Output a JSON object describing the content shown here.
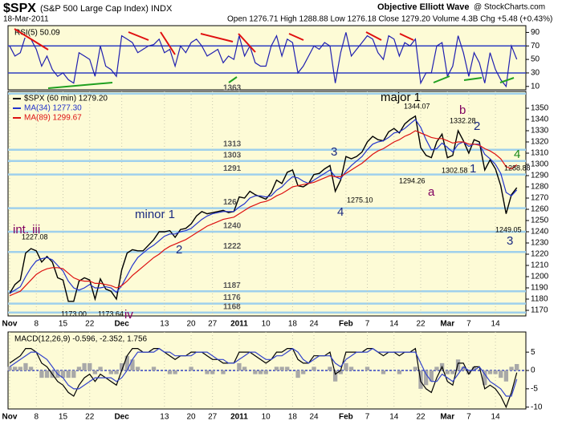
{
  "header": {
    "symbol": "$SPX",
    "name": "(S&P 500 Large Cap Index) INDX",
    "source": "Objective Elliott Wave",
    "site": "@ StockCharts.com",
    "date": "18-Mar-2011",
    "quote": "Open 1276.71 High 1288.88 Low 1276.18 Close 1279.20 Volume 4.3B Chg +5.48 (+0.43%)"
  },
  "chart_data": [
    {
      "type": "line",
      "title": "RSI(5) 50.09",
      "series": [
        {
          "color": "#2020b0",
          "values": [
            70,
            55,
            60,
            85,
            80,
            65,
            40,
            55,
            35,
            25,
            30,
            20,
            15,
            60,
            55,
            50,
            25,
            70,
            40,
            35,
            25,
            85,
            80,
            75,
            60,
            65,
            70,
            72,
            80,
            60,
            65,
            40,
            70,
            60,
            75,
            80,
            70,
            55,
            60,
            65,
            45,
            55,
            50,
            85,
            55,
            70,
            45,
            40,
            40,
            70,
            85,
            55,
            80,
            75,
            30,
            40,
            55,
            70,
            65,
            75,
            70,
            15,
            60,
            90,
            55,
            65,
            75,
            85,
            80,
            60,
            50,
            85,
            80,
            55,
            75,
            70,
            80,
            15,
            30,
            30,
            70,
            75,
            25,
            40,
            85,
            60,
            25,
            60,
            45,
            15,
            60,
            35,
            20,
            10,
            70,
            50.09
          ]
        }
      ],
      "ylim": [
        5,
        100
      ],
      "yticks": [
        10,
        30,
        50,
        70,
        90
      ],
      "ref_lines": [
        30,
        70
      ]
    },
    {
      "type": "line",
      "categories": [
        "Nov",
        null,
        null,
        null,
        null,
        "8",
        null,
        null,
        null,
        null,
        "15",
        null,
        null,
        null,
        null,
        "22",
        null,
        null,
        null,
        null,
        null,
        "Dec",
        null,
        null,
        null,
        null,
        null,
        null,
        null,
        "13",
        null,
        null,
        null,
        null,
        "20",
        null,
        null,
        null,
        "27",
        null,
        null,
        null,
        null,
        "2011",
        null,
        null,
        null,
        null,
        "10",
        null,
        null,
        null,
        null,
        "18",
        null,
        null,
        null,
        "24",
        null,
        null,
        null,
        null,
        null,
        "Feb",
        null,
        null,
        null,
        "7",
        null,
        null,
        null,
        null,
        "14",
        null,
        null,
        null,
        null,
        "22",
        null,
        null,
        null,
        null,
        "Mar",
        null,
        null,
        null,
        "7",
        null,
        null,
        null,
        null,
        "14",
        null,
        null,
        null,
        null
      ],
      "series": [
        {
          "name": "$SPX (60 min) 1279.20",
          "color": "#000000",
          "values": [
            1185,
            1193,
            1197,
            1221,
            1225,
            1223,
            1213,
            1218,
            1213,
            1199,
            1197,
            1178,
            1178,
            1196,
            1199,
            1197,
            1180,
            1198,
            1189,
            1187,
            1180,
            1206,
            1221,
            1224,
            1223,
            1223,
            1228,
            1233,
            1240,
            1240,
            1241,
            1235,
            1242,
            1243,
            1247,
            1254,
            1258,
            1256,
            1257,
            1258,
            1259,
            1257,
            1258,
            1271,
            1270,
            1276,
            1273,
            1271,
            1269,
            1275,
            1286,
            1283,
            1293,
            1295,
            1281,
            1280,
            1283,
            1291,
            1292,
            1296,
            1299,
            1276,
            1286,
            1307,
            1305,
            1307,
            1311,
            1320,
            1325,
            1322,
            1321,
            1329,
            1332,
            1328,
            1336,
            1340,
            1343,
            1315,
            1308,
            1306,
            1320,
            1327,
            1306,
            1308,
            1330,
            1321,
            1310,
            1322,
            1320,
            1295,
            1304,
            1296,
            1281,
            1256,
            1273,
            1279.2
          ]
        },
        {
          "name": "MA(34) 1277.30",
          "color": "#2233cc",
          "values": [
            1185,
            1188,
            1191,
            1200,
            1208,
            1214,
            1216,
            1217,
            1215,
            1210,
            1205,
            1196,
            1190,
            1188,
            1190,
            1193,
            1190,
            1190,
            1191,
            1190,
            1186,
            1192,
            1201,
            1210,
            1217,
            1221,
            1225,
            1228,
            1232,
            1236,
            1238,
            1238,
            1240,
            1241,
            1243,
            1247,
            1251,
            1254,
            1256,
            1257,
            1258,
            1258,
            1258,
            1262,
            1265,
            1270,
            1272,
            1272,
            1271,
            1272,
            1277,
            1280,
            1285,
            1289,
            1288,
            1285,
            1283,
            1286,
            1289,
            1292,
            1295,
            1289,
            1287,
            1294,
            1299,
            1303,
            1307,
            1313,
            1318,
            1320,
            1321,
            1324,
            1328,
            1329,
            1332,
            1336,
            1340,
            1333,
            1322,
            1313,
            1314,
            1319,
            1315,
            1311,
            1318,
            1320,
            1316,
            1318,
            1318,
            1309,
            1305,
            1300,
            1292,
            1275,
            1272,
            1277.3
          ]
        },
        {
          "name": "MA(89) 1299.67",
          "color": "#dd1111",
          "values": [
            1183,
            1185,
            1187,
            1192,
            1197,
            1202,
            1205,
            1207,
            1208,
            1208,
            1207,
            1203,
            1199,
            1197,
            1196,
            1196,
            1194,
            1194,
            1193,
            1192,
            1190,
            1192,
            1196,
            1201,
            1205,
            1209,
            1213,
            1217,
            1220,
            1224,
            1227,
            1229,
            1231,
            1233,
            1236,
            1239,
            1242,
            1245,
            1247,
            1249,
            1251,
            1252,
            1253,
            1256,
            1259,
            1262,
            1264,
            1266,
            1267,
            1269,
            1272,
            1274,
            1277,
            1280,
            1281,
            1282,
            1283,
            1284,
            1286,
            1288,
            1290,
            1289,
            1289,
            1292,
            1295,
            1298,
            1301,
            1305,
            1309,
            1312,
            1314,
            1317,
            1320,
            1322,
            1325,
            1327,
            1330,
            1328,
            1326,
            1324,
            1323,
            1323,
            1321,
            1319,
            1320,
            1320,
            1318,
            1318,
            1317,
            1314,
            1312,
            1309,
            1305,
            1298,
            1296,
            1299.67
          ]
        }
      ],
      "ylim": [
        1165,
        1365
      ],
      "yticks": [
        1170,
        1180,
        1190,
        1200,
        1210,
        1220,
        1230,
        1240,
        1250,
        1260,
        1270,
        1280,
        1290,
        1300,
        1310,
        1320,
        1330,
        1340,
        1350
      ],
      "levels": [
        1363,
        1313,
        1303,
        1291,
        {
          "value": 1261,
          "label": "126"
        },
        1240,
        1222,
        1187,
        1176,
        1168
      ],
      "annotations": [
        {
          "text": "major 1",
          "color": "#000000"
        },
        {
          "text": "1344.07",
          "color": "#000000"
        },
        {
          "text": "b",
          "color": "#800060"
        },
        {
          "text": "1332.28",
          "color": "#000000"
        },
        {
          "text": "2",
          "color": "#1a2a80"
        },
        {
          "text": "3",
          "color": "#1a2a80"
        },
        {
          "text": "1",
          "color": "#1a2a80"
        },
        {
          "text": "1302.58",
          "color": "#000000"
        },
        {
          "text": "1294.26",
          "color": "#000000"
        },
        {
          "text": "a",
          "color": "#800060"
        },
        {
          "text": "4",
          "color": "#1a8a1a"
        },
        {
          "text": "1288.88",
          "color": "#000000"
        },
        {
          "text": "1275.10",
          "color": "#000000"
        },
        {
          "text": "4",
          "color": "#1a2a80"
        },
        {
          "text": "minor 1",
          "color": "#1a2a80"
        },
        {
          "text": "1249.05",
          "color": "#000000"
        },
        {
          "text": "3",
          "color": "#1a2a80"
        },
        {
          "text": "int. iii",
          "color": "#800060"
        },
        {
          "text": "1227.08",
          "color": "#000000"
        },
        {
          "text": "2",
          "color": "#1a2a80"
        },
        {
          "text": "1173.00",
          "color": "#000000"
        },
        {
          "text": "1173.64",
          "color": "#000000"
        },
        {
          "text": "iv",
          "color": "#800060"
        }
      ]
    },
    {
      "type": "line",
      "title": "MACD(12,26,9) -0.596, -2.352, 1.756",
      "categories": [
        "Nov",
        null,
        null,
        null,
        null,
        "8",
        null,
        null,
        null,
        null,
        "15",
        null,
        null,
        null,
        null,
        "22",
        null,
        null,
        null,
        null,
        null,
        "Dec",
        null,
        null,
        null,
        null,
        null,
        null,
        null,
        "13",
        null,
        null,
        null,
        null,
        "20",
        null,
        null,
        null,
        "27",
        null,
        null,
        null,
        null,
        "2011",
        null,
        null,
        null,
        null,
        "10",
        null,
        null,
        null,
        null,
        "18",
        null,
        null,
        null,
        "24",
        null,
        null,
        null,
        null,
        null,
        "Feb",
        null,
        null,
        null,
        "7",
        null,
        null,
        null,
        null,
        "14",
        null,
        null,
        null,
        null,
        "22",
        null,
        null,
        null,
        null,
        "Mar",
        null,
        null,
        null,
        "7",
        null,
        null,
        null,
        null,
        "14",
        null,
        null,
        null,
        null
      ],
      "series": [
        {
          "type": "bar",
          "color": "#a8a8a8",
          "values": [
            1,
            1,
            1,
            2,
            1,
            0,
            -2,
            -2,
            -2,
            -2,
            -2,
            -2,
            -2,
            1,
            2,
            2,
            -1,
            1,
            0,
            -1,
            -1,
            2,
            4,
            3,
            1,
            0,
            0,
            1,
            0,
            0,
            -1,
            -1,
            0,
            0,
            1,
            0,
            0,
            -1,
            -1,
            0,
            -1,
            0,
            0,
            2,
            1,
            0,
            -1,
            -1,
            -1,
            0,
            1,
            1,
            1,
            0,
            -2,
            -1,
            0,
            1,
            0,
            0,
            1,
            -3,
            -1,
            2,
            1,
            0,
            0,
            1,
            0,
            0,
            -1,
            0,
            0,
            -1,
            0,
            0,
            1,
            -5,
            -4,
            -3,
            1,
            2,
            -1,
            -1,
            3,
            1,
            -1,
            1,
            0,
            -4,
            -1,
            -1,
            -2,
            -3,
            1,
            1.756
          ]
        },
        {
          "type": "line",
          "color": "#000000",
          "values": [
            2,
            3,
            4,
            6,
            6,
            5,
            2,
            1,
            -1,
            -3,
            -4,
            -6,
            -7,
            -4,
            -2,
            -1,
            -3,
            -1,
            -2,
            -3,
            -4,
            0,
            4,
            6,
            6,
            5,
            5,
            6,
            6,
            5,
            4,
            3,
            4,
            4,
            5,
            5,
            5,
            4,
            3,
            3,
            2,
            2,
            2,
            5,
            5,
            5,
            4,
            3,
            2,
            3,
            5,
            5,
            6,
            6,
            3,
            2,
            2,
            4,
            4,
            4,
            5,
            -1,
            0,
            5,
            5,
            5,
            5,
            6,
            6,
            5,
            4,
            5,
            5,
            4,
            5,
            5,
            6,
            -3,
            -5,
            -6,
            -2,
            1,
            -3,
            -4,
            2,
            2,
            -1,
            1,
            1,
            -5,
            -4,
            -5,
            -7,
            -10,
            -6,
            -0.596
          ]
        },
        {
          "type": "line",
          "color": "#3344cc",
          "values": [
            1,
            2,
            3,
            4,
            5,
            5,
            4,
            3,
            1,
            -1,
            -2,
            -4,
            -5,
            -5,
            -4,
            -3,
            -2,
            -2,
            -2,
            -2,
            -3,
            -2,
            0,
            3,
            5,
            5,
            5,
            5,
            6,
            5,
            5,
            4,
            4,
            4,
            4,
            5,
            5,
            5,
            4,
            3,
            3,
            2,
            2,
            3,
            4,
            5,
            5,
            4,
            3,
            3,
            4,
            4,
            5,
            6,
            5,
            3,
            2,
            3,
            4,
            4,
            4,
            2,
            1,
            3,
            4,
            5,
            5,
            5,
            6,
            5,
            5,
            5,
            5,
            5,
            5,
            5,
            5,
            2,
            -1,
            -3,
            -3,
            -1,
            -2,
            -3,
            -1,
            1,
            0,
            0,
            1,
            -1,
            -3,
            -4,
            -5,
            -7,
            -7,
            -2.352
          ]
        }
      ],
      "ylim": [
        -10.5,
        10.5
      ],
      "yticks": [
        -10,
        -5,
        0,
        5
      ],
      "ref_lines": [
        0
      ]
    }
  ]
}
